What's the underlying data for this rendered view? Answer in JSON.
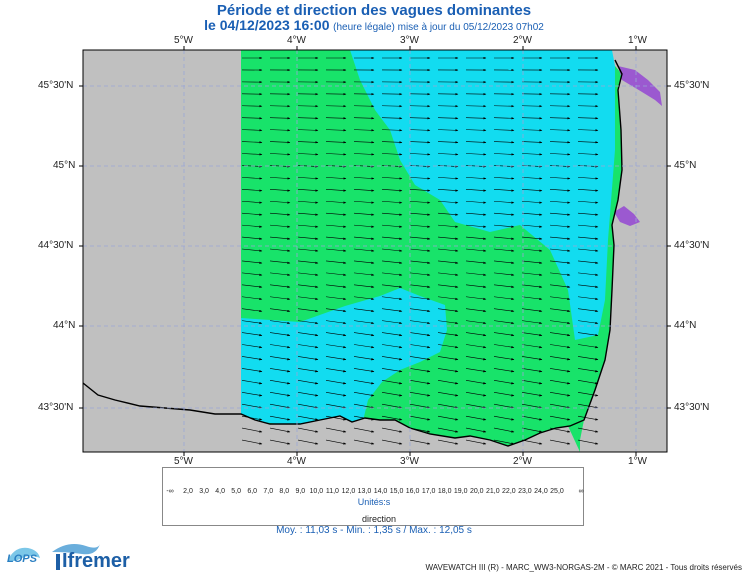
{
  "header": {
    "title": "Période et direction des vagues dominantes",
    "date_line": "le 04/12/2023 16:00",
    "date_note": "(heure légale) mise à jour du 05/12/2023 07h02"
  },
  "axes": {
    "lon_labels": [
      "5°W",
      "4°W",
      "3°W",
      "2°W",
      "1°W"
    ],
    "lat_labels": [
      "45°30'N",
      "45°N",
      "44°30'N",
      "44°N",
      "43°30'N"
    ]
  },
  "legend": {
    "min_symbol": "-∞",
    "max_symbol": "∞",
    "ticks": [
      "2,0",
      "3,0",
      "4,0",
      "5,0",
      "6,0",
      "7,0",
      "8,0",
      "9,0",
      "10,0",
      "11,0",
      "12,0",
      "13,0",
      "14,0",
      "15,0",
      "16,0",
      "17,0",
      "18,0",
      "19,0",
      "20,0",
      "21,0",
      "22,0",
      "23,0",
      "24,0",
      "25,0"
    ],
    "colors": [
      "#b29dd2",
      "#9b59d0",
      "#7a1ee8",
      "#4a32f5",
      "#2d5cf7",
      "#2b8ef5",
      "#2fb4f0",
      "#34d2ef",
      "#2ee6e6",
      "#30e8b8",
      "#32e07a",
      "#40de4a",
      "#7ae63c",
      "#b2ee34",
      "#e6f22e",
      "#f6e22a",
      "#f6c226",
      "#f6a222",
      "#f6821e",
      "#f4621a",
      "#ee4216",
      "#e42612",
      "#d21210",
      "#bc0c0c"
    ],
    "units": "Unités:s",
    "direction_label": "direction"
  },
  "stats": "Moy. : 11,03 s  -  Min. : 1,35 s / Max. : 12,05 s",
  "footer": "WAVEWATCH III (R) - MARC_WW3-NORGAS-2M - © MARC 2021 - Tous droits réservés",
  "logos": {
    "lops": "LOPS",
    "ifremer": "Ifremer"
  },
  "map_colors": {
    "land": "#c0c0c0",
    "mask": "#c0c0c0",
    "sea_10s": "#12dcf0",
    "sea_11s": "#18e36a",
    "coast": "#000000"
  }
}
